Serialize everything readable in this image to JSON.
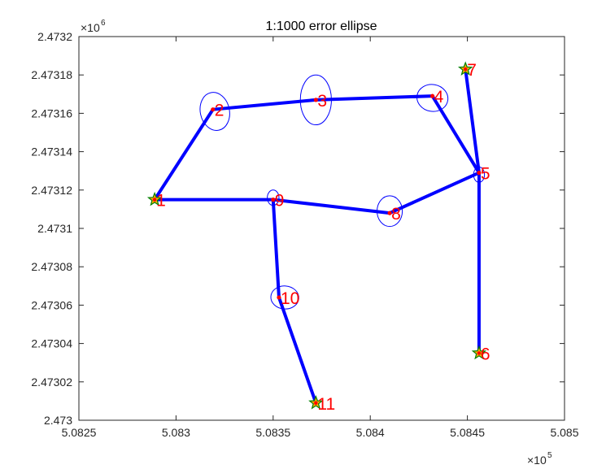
{
  "chart_data": {
    "type": "line",
    "title": "1:1000 error ellipse",
    "xlabel": "",
    "ylabel": "",
    "x_scale_label": "×10",
    "x_scale_exponent": "5",
    "y_scale_label": "×10",
    "y_scale_exponent": "6",
    "xlim": [
      5.0825,
      5.085
    ],
    "ylim": [
      2.473,
      2.4732
    ],
    "x_ticks": [
      5.0825,
      5.083,
      5.0835,
      5.084,
      5.0845,
      5.085
    ],
    "x_tick_labels": [
      "5.0825",
      "5.083",
      "5.0835",
      "5.084",
      "5.0845",
      "5.085"
    ],
    "y_ticks": [
      2.473,
      2.47302,
      2.47304,
      2.47306,
      2.47308,
      2.4731,
      2.47312,
      2.47314,
      2.47316,
      2.47318,
      2.4732
    ],
    "y_tick_labels": [
      "2.473",
      "2.47302",
      "2.47304",
      "2.47306",
      "2.47308",
      "2.4731",
      "2.47312",
      "2.47314",
      "2.47316",
      "2.47318",
      "2.4732"
    ],
    "grid": false,
    "line_color": "#0000ff",
    "label_color": "#ff0000",
    "star_fill": "#ffa500",
    "star_edge": "#008000",
    "points": [
      {
        "label": "1",
        "x": 5.08289,
        "y": 2.473115,
        "control": true
      },
      {
        "label": "2",
        "x": 5.08319,
        "y": 2.473162
      },
      {
        "label": "3",
        "x": 5.08372,
        "y": 2.473167
      },
      {
        "label": "4",
        "x": 5.08432,
        "y": 2.473169
      },
      {
        "label": "5",
        "x": 5.08456,
        "y": 2.473129
      },
      {
        "label": "6",
        "x": 5.08456,
        "y": 2.473035,
        "control": true
      },
      {
        "label": "7",
        "x": 5.08449,
        "y": 2.473183,
        "control": true
      },
      {
        "label": "8",
        "x": 5.0841,
        "y": 2.473108
      },
      {
        "label": "9",
        "x": 5.0835,
        "y": 2.473115
      },
      {
        "label": "10",
        "x": 5.08353,
        "y": 2.473064
      },
      {
        "label": "11",
        "x": 5.08372,
        "y": 2.473009,
        "control": true
      }
    ],
    "path_order": [
      "1",
      "2",
      "3",
      "4",
      "5",
      "8",
      "9",
      "10",
      "11"
    ],
    "extra_segments": [
      [
        "7",
        "5"
      ],
      [
        "5",
        "6"
      ],
      [
        "9",
        "1"
      ]
    ],
    "ellipses": [
      {
        "label": "2",
        "cx": 5.0832,
        "cy": 2.473161,
        "rx": 7.5e-05,
        "ry": 1e-05,
        "angle_deg": -12
      },
      {
        "label": "3",
        "cx": 5.08372,
        "cy": 2.473167,
        "rx": 8e-05,
        "ry": 1.3e-05,
        "angle_deg": 0
      },
      {
        "label": "4",
        "cx": 5.08432,
        "cy": 2.473168,
        "rx": 8e-05,
        "ry": 7e-06,
        "angle_deg": 10
      },
      {
        "label": "5",
        "cx": 5.08456,
        "cy": 2.473128,
        "rx": 2.8e-05,
        "ry": 4e-06,
        "angle_deg": 0
      },
      {
        "label": "8",
        "cx": 5.0841,
        "cy": 2.473109,
        "rx": 6.5e-05,
        "ry": 8e-06,
        "angle_deg": 0
      },
      {
        "label": "9",
        "cx": 5.0835,
        "cy": 2.473116,
        "rx": 3e-05,
        "ry": 4e-06,
        "angle_deg": 0
      },
      {
        "label": "10",
        "cx": 5.08356,
        "cy": 2.473064,
        "rx": 7.2e-05,
        "ry": 6e-06,
        "angle_deg": 4
      }
    ]
  }
}
